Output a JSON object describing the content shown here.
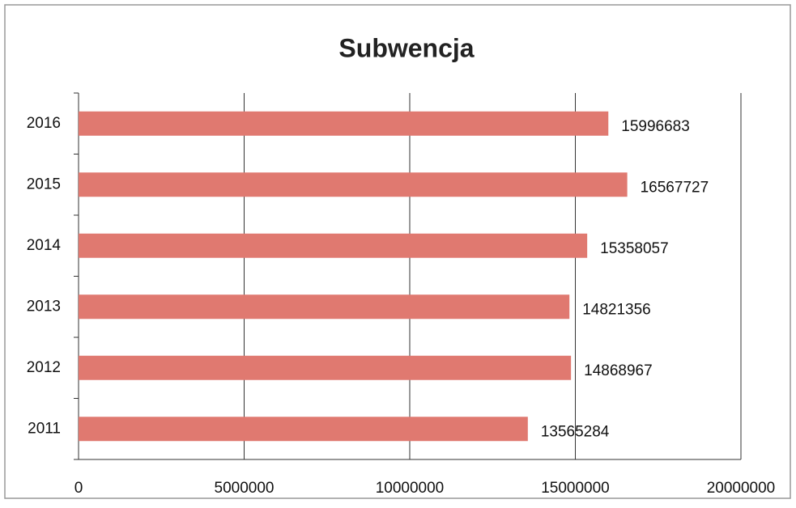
{
  "chart_data": {
    "type": "hbar",
    "title": "Subwencja",
    "categories": [
      "2011",
      "2012",
      "2013",
      "2014",
      "2015",
      "2016"
    ],
    "values": [
      13565284,
      14868967,
      14821356,
      15358057,
      16567727,
      15996683
    ],
    "color": "#e07970",
    "xlim": [
      0,
      20000000
    ],
    "xticks": [
      0,
      5000000,
      10000000,
      15000000,
      20000000
    ],
    "grid": true
  }
}
